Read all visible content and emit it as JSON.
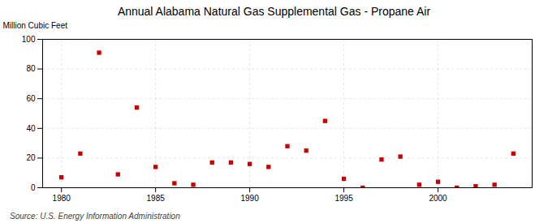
{
  "chart_data": {
    "type": "scatter",
    "title": "Annual Alabama Natural Gas Supplemental Gas - Propane Air",
    "ylabel": "Million Cubic Feet",
    "source": "Source: U.S. Energy Information Administration",
    "x": [
      1980,
      1981,
      1982,
      1983,
      1984,
      1985,
      1986,
      1987,
      1988,
      1989,
      1990,
      1991,
      1992,
      1993,
      1994,
      1995,
      1996,
      1997,
      1998,
      1999,
      2000,
      2001,
      2002,
      2003,
      2004
    ],
    "values": [
      7,
      23,
      91,
      9,
      54,
      14,
      3,
      2,
      17,
      17,
      16,
      14,
      28,
      25,
      45,
      6,
      0,
      19,
      21,
      2,
      4,
      0,
      1,
      2,
      23
    ],
    "color": "#cc0000",
    "marker": "square",
    "xlim": [
      1979,
      2005
    ],
    "xticks": [
      1980,
      1985,
      1990,
      1995,
      2000
    ],
    "ylim": [
      0,
      100
    ],
    "yticks": [
      0,
      20,
      40,
      60,
      80,
      100
    ],
    "grid": true
  }
}
